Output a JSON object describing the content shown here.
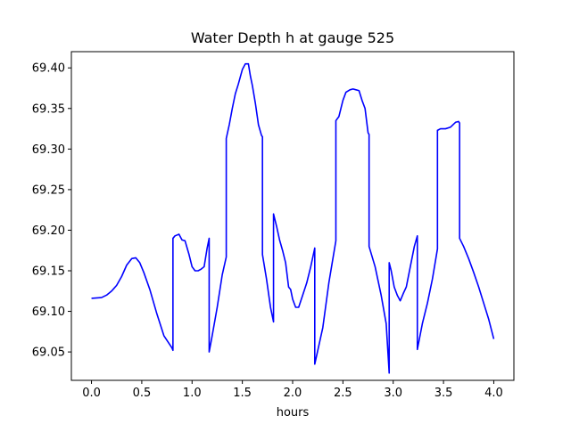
{
  "chart_data": {
    "type": "line",
    "title": "Water Depth h at gauge 525",
    "xlabel": "hours",
    "ylabel": "",
    "xlim": [
      -0.2,
      4.2
    ],
    "ylim": [
      69.015,
      69.42
    ],
    "x_ticks": [
      0.0,
      0.5,
      1.0,
      1.5,
      2.0,
      2.5,
      3.0,
      3.5,
      4.0
    ],
    "x_tick_labels": [
      "0.0",
      "0.5",
      "1.0",
      "1.5",
      "2.0",
      "2.5",
      "3.0",
      "3.5",
      "4.0"
    ],
    "y_ticks": [
      69.05,
      69.1,
      69.15,
      69.2,
      69.25,
      69.3,
      69.35,
      69.4
    ],
    "y_tick_labels": [
      "69.05",
      "69.10",
      "69.15",
      "69.20",
      "69.25",
      "69.30",
      "69.35",
      "69.40"
    ],
    "grid": false,
    "legend": "none",
    "series": [
      {
        "color": "#0000ff",
        "x": [
          0.0,
          0.1,
          0.15,
          0.2,
          0.25,
          0.3,
          0.35,
          0.4,
          0.44,
          0.48,
          0.52,
          0.58,
          0.65,
          0.72,
          0.8,
          0.81,
          0.81,
          0.83,
          0.87,
          0.9,
          0.93,
          0.97,
          1.0,
          1.03,
          1.06,
          1.09,
          1.12,
          1.15,
          1.17,
          1.17,
          1.2,
          1.25,
          1.3,
          1.34,
          1.34,
          1.37,
          1.4,
          1.43,
          1.46,
          1.5,
          1.53,
          1.56,
          1.58,
          1.6,
          1.63,
          1.66,
          1.69,
          1.7,
          1.7,
          1.74,
          1.78,
          1.81,
          1.81,
          1.84,
          1.87,
          1.9,
          1.93,
          1.96,
          1.98,
          2.0,
          2.03,
          2.06,
          2.1,
          2.14,
          2.18,
          2.22,
          2.22,
          2.3,
          2.36,
          2.43,
          2.43,
          2.46,
          2.5,
          2.53,
          2.57,
          2.6,
          2.63,
          2.66,
          2.69,
          2.72,
          2.75,
          2.76,
          2.76,
          2.82,
          2.88,
          2.93,
          2.96,
          2.96,
          2.98,
          3.01,
          3.04,
          3.07,
          3.1,
          3.13,
          3.17,
          3.21,
          3.24,
          3.24,
          3.29,
          3.34,
          3.39,
          3.44,
          3.44,
          3.47,
          3.52,
          3.57,
          3.62,
          3.65,
          3.66,
          3.66,
          3.7,
          3.75,
          3.8,
          3.85,
          3.9,
          3.95,
          4.0
        ],
        "y": [
          69.116,
          69.117,
          69.12,
          69.125,
          69.132,
          69.143,
          69.157,
          69.165,
          69.166,
          69.16,
          69.148,
          69.127,
          69.097,
          69.07,
          69.055,
          69.052,
          69.19,
          69.193,
          69.195,
          69.188,
          69.187,
          69.17,
          69.155,
          69.15,
          69.15,
          69.152,
          69.155,
          69.178,
          69.19,
          69.05,
          69.07,
          69.105,
          69.145,
          69.167,
          69.313,
          69.33,
          69.35,
          69.368,
          69.38,
          69.398,
          69.405,
          69.405,
          69.39,
          69.378,
          69.356,
          69.33,
          69.317,
          69.315,
          69.17,
          69.14,
          69.105,
          69.087,
          69.22,
          69.205,
          69.188,
          69.175,
          69.16,
          69.13,
          69.127,
          69.115,
          69.105,
          69.105,
          69.12,
          69.135,
          69.155,
          69.178,
          69.035,
          69.08,
          69.135,
          69.187,
          69.335,
          69.34,
          69.36,
          69.37,
          69.373,
          69.374,
          69.373,
          69.372,
          69.36,
          69.35,
          69.32,
          69.318,
          69.18,
          69.155,
          69.12,
          69.085,
          69.024,
          69.16,
          69.15,
          69.13,
          69.12,
          69.113,
          69.122,
          69.13,
          69.155,
          69.18,
          69.193,
          69.053,
          69.085,
          69.11,
          69.14,
          69.177,
          69.323,
          69.325,
          69.325,
          69.327,
          69.333,
          69.334,
          69.332,
          69.19,
          69.18,
          69.165,
          69.148,
          69.13,
          69.11,
          69.09,
          69.066
        ]
      }
    ]
  }
}
